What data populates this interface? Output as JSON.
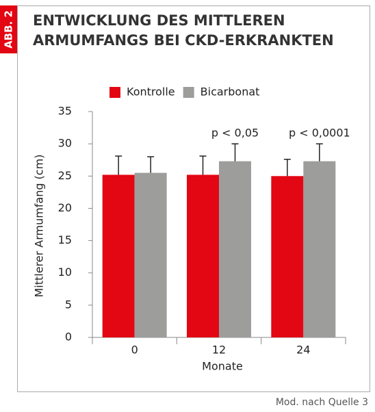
{
  "figure_label": "ABB. 2",
  "source": "Mod. nach Quelle 3",
  "chart_data": {
    "type": "bar",
    "title": [
      "ENTWICKLUNG DES MITTLEREN",
      "ARMUMFANGS BEI CKD-ERKRANKTEN"
    ],
    "x_label": "Monate",
    "y_label": "Mittlerer Armumfang (cm)",
    "categories": [
      "0",
      "12",
      "24"
    ],
    "series": [
      {
        "name": "Kontrolle",
        "color": "#e30613",
        "values": [
          25.2,
          25.2,
          25.0
        ],
        "errors": [
          2.9,
          2.9,
          2.6
        ]
      },
      {
        "name": "Bicarbonat",
        "color": "#9d9d9c",
        "values": [
          25.5,
          27.3,
          27.3
        ],
        "errors": [
          2.5,
          2.7,
          2.7
        ]
      }
    ],
    "annotations": [
      {
        "text": "p < 0,05",
        "x": "12"
      },
      {
        "text": "p < 0,0001",
        "x": "24"
      }
    ],
    "ylim": [
      0,
      35
    ],
    "yticks": [
      0,
      5,
      10,
      15,
      20,
      25,
      30,
      35
    ],
    "grid": false,
    "legend": "top"
  }
}
